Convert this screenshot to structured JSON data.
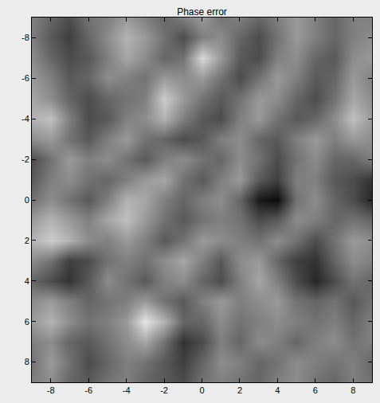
{
  "chart_data": {
    "type": "heatmap",
    "title": "Phase error",
    "x": [
      -9,
      -8,
      -7,
      -6,
      -5,
      -4,
      -3,
      -2,
      -1,
      0,
      1,
      2,
      3,
      4,
      5,
      6,
      7,
      8,
      9
    ],
    "y": [
      -9,
      -8,
      -7,
      -6,
      -5,
      -4,
      -3,
      -2,
      -1,
      0,
      1,
      2,
      3,
      4,
      5,
      6,
      7,
      8,
      9
    ],
    "z": [
      [
        0.5,
        0.4,
        0.3,
        0.45,
        0.5,
        0.6,
        0.5,
        0.4,
        0.5,
        0.6,
        0.45,
        0.5,
        0.4,
        0.5,
        0.6,
        0.5,
        0.4,
        0.5,
        0.5
      ],
      [
        0.5,
        0.35,
        0.25,
        0.4,
        0.55,
        0.7,
        0.6,
        0.45,
        0.3,
        0.5,
        0.55,
        0.4,
        0.3,
        0.45,
        0.6,
        0.5,
        0.4,
        0.5,
        0.55
      ],
      [
        0.55,
        0.4,
        0.3,
        0.35,
        0.5,
        0.65,
        0.55,
        0.4,
        0.45,
        0.85,
        0.6,
        0.35,
        0.3,
        0.5,
        0.55,
        0.4,
        0.35,
        0.55,
        0.6
      ],
      [
        0.6,
        0.5,
        0.35,
        0.4,
        0.55,
        0.5,
        0.45,
        0.6,
        0.55,
        0.6,
        0.45,
        0.3,
        0.45,
        0.6,
        0.5,
        0.35,
        0.4,
        0.6,
        0.5
      ],
      [
        0.65,
        0.55,
        0.4,
        0.3,
        0.4,
        0.45,
        0.5,
        0.8,
        0.6,
        0.45,
        0.35,
        0.45,
        0.6,
        0.55,
        0.4,
        0.3,
        0.45,
        0.65,
        0.55
      ],
      [
        0.7,
        0.75,
        0.5,
        0.3,
        0.35,
        0.5,
        0.55,
        0.7,
        0.5,
        0.35,
        0.3,
        0.5,
        0.6,
        0.45,
        0.35,
        0.4,
        0.55,
        0.75,
        0.6
      ],
      [
        0.55,
        0.6,
        0.45,
        0.35,
        0.5,
        0.6,
        0.45,
        0.4,
        0.3,
        0.35,
        0.5,
        0.55,
        0.4,
        0.35,
        0.5,
        0.6,
        0.5,
        0.6,
        0.55
      ],
      [
        0.3,
        0.45,
        0.6,
        0.5,
        0.55,
        0.45,
        0.35,
        0.5,
        0.55,
        0.45,
        0.4,
        0.55,
        0.45,
        0.3,
        0.45,
        0.55,
        0.4,
        0.4,
        0.5
      ],
      [
        0.35,
        0.5,
        0.55,
        0.45,
        0.4,
        0.5,
        0.6,
        0.65,
        0.45,
        0.35,
        0.5,
        0.6,
        0.35,
        0.25,
        0.5,
        0.5,
        0.35,
        0.3,
        0.2
      ],
      [
        0.45,
        0.55,
        0.45,
        0.35,
        0.5,
        0.7,
        0.65,
        0.5,
        0.4,
        0.5,
        0.55,
        0.4,
        0.1,
        0.05,
        0.45,
        0.55,
        0.4,
        0.3,
        0.15
      ],
      [
        0.6,
        0.7,
        0.6,
        0.5,
        0.65,
        0.75,
        0.6,
        0.45,
        0.35,
        0.45,
        0.5,
        0.45,
        0.3,
        0.35,
        0.55,
        0.5,
        0.4,
        0.45,
        0.4
      ],
      [
        0.7,
        0.8,
        0.7,
        0.55,
        0.5,
        0.6,
        0.5,
        0.35,
        0.45,
        0.6,
        0.55,
        0.5,
        0.45,
        0.55,
        0.45,
        0.3,
        0.45,
        0.6,
        0.55
      ],
      [
        0.55,
        0.45,
        0.25,
        0.3,
        0.45,
        0.5,
        0.45,
        0.55,
        0.65,
        0.5,
        0.35,
        0.55,
        0.6,
        0.4,
        0.25,
        0.2,
        0.4,
        0.55,
        0.5
      ],
      [
        0.4,
        0.3,
        0.2,
        0.35,
        0.55,
        0.45,
        0.35,
        0.5,
        0.55,
        0.4,
        0.3,
        0.5,
        0.65,
        0.5,
        0.3,
        0.15,
        0.3,
        0.45,
        0.4
      ],
      [
        0.55,
        0.6,
        0.5,
        0.4,
        0.45,
        0.5,
        0.6,
        0.45,
        0.35,
        0.5,
        0.6,
        0.5,
        0.55,
        0.6,
        0.45,
        0.4,
        0.45,
        0.35,
        0.45
      ],
      [
        0.6,
        0.7,
        0.55,
        0.45,
        0.5,
        0.6,
        0.9,
        0.7,
        0.4,
        0.4,
        0.55,
        0.45,
        0.5,
        0.55,
        0.5,
        0.45,
        0.5,
        0.4,
        0.5
      ],
      [
        0.5,
        0.55,
        0.4,
        0.35,
        0.45,
        0.55,
        0.65,
        0.45,
        0.2,
        0.3,
        0.5,
        0.4,
        0.55,
        0.5,
        0.4,
        0.5,
        0.55,
        0.45,
        0.5
      ],
      [
        0.45,
        0.6,
        0.45,
        0.3,
        0.4,
        0.5,
        0.45,
        0.35,
        0.25,
        0.4,
        0.55,
        0.5,
        0.4,
        0.45,
        0.55,
        0.5,
        0.45,
        0.5,
        0.4
      ],
      [
        0.5,
        0.55,
        0.4,
        0.35,
        0.45,
        0.5,
        0.4,
        0.35,
        0.3,
        0.45,
        0.5,
        0.45,
        0.4,
        0.5,
        0.55,
        0.45,
        0.4,
        0.5,
        0.45
      ]
    ],
    "zlim": [
      0,
      1
    ],
    "xlim": [
      -9,
      9
    ],
    "ylim": [
      9,
      -9
    ],
    "xticks": [
      -8,
      -6,
      -4,
      -2,
      0,
      2,
      4,
      6,
      8
    ],
    "yticks": [
      -8,
      -6,
      -4,
      -2,
      0,
      2,
      4,
      6,
      8
    ]
  }
}
